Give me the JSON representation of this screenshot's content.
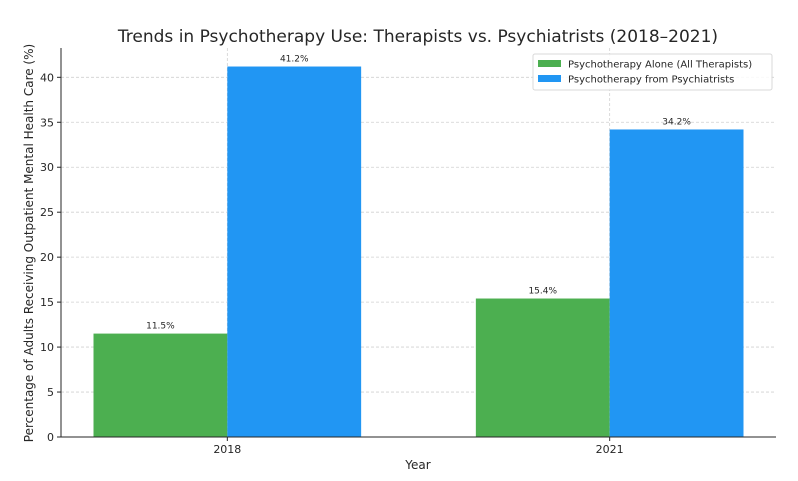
{
  "chart_data": {
    "type": "bar",
    "title": "Trends in Psychotherapy Use: Therapists vs. Psychiatrists (2018–2021)",
    "xlabel": "Year",
    "ylabel": "Percentage of Adults Receiving Outpatient Mental Health Care (%)",
    "categories": [
      "2018",
      "2021"
    ],
    "series": [
      {
        "name": "Psychotherapy Alone (All Therapists)",
        "values": [
          11.5,
          15.4
        ],
        "color": "#4caf50",
        "labels": [
          "11.5%",
          "15.4%"
        ]
      },
      {
        "name": "Psychotherapy from Psychiatrists",
        "values": [
          41.2,
          34.2
        ],
        "color": "#2196f3",
        "labels": [
          "41.2%",
          "34.2%"
        ]
      }
    ],
    "ylim": [
      0,
      43.26
    ],
    "yticks": [
      0,
      5,
      10,
      15,
      20,
      25,
      30,
      35,
      40
    ],
    "grid": true,
    "legend": "top-right"
  }
}
